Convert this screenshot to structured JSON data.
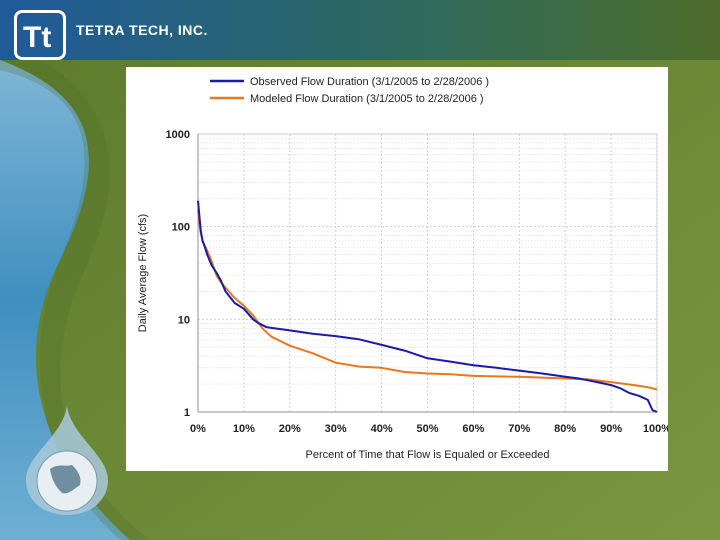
{
  "header": {
    "company_name": "TETRA TECH, INC."
  },
  "colors": {
    "observed": "#1a1aa8",
    "modeled": "#e6781e",
    "grid": "#c9c9c9"
  },
  "chart_data": {
    "type": "line",
    "title": "",
    "xlabel": "Percent of Time that Flow is Equaled or Exceeded",
    "ylabel": "Daily Average Flow (cfs)",
    "yscale": "log",
    "xlim": [
      0,
      100
    ],
    "ylim": [
      1,
      1000
    ],
    "x_ticks": [
      "0%",
      "10%",
      "20%",
      "30%",
      "40%",
      "50%",
      "60%",
      "70%",
      "80%",
      "90%",
      "100%"
    ],
    "y_ticks": [
      "1",
      "10",
      "100",
      "1000"
    ],
    "legend_position": "top",
    "series": [
      {
        "name": "Observed Flow Duration (3/1/2005 to 2/28/2006 )",
        "x": [
          0,
          0.3,
          0.6,
          1,
          1.5,
          2,
          3,
          4,
          5,
          6,
          8,
          10,
          12,
          13,
          15,
          20,
          25,
          30,
          35,
          40,
          45,
          50,
          55,
          60,
          65,
          70,
          75,
          80,
          83,
          85,
          88,
          90,
          92,
          94,
          96,
          98,
          99,
          100
        ],
        "y": [
          190,
          130,
          90,
          70,
          60,
          50,
          38,
          32,
          26,
          20,
          15,
          13,
          10,
          9.2,
          8.2,
          7.6,
          7.0,
          6.6,
          6.1,
          5.3,
          4.6,
          3.8,
          3.5,
          3.2,
          3.0,
          2.8,
          2.6,
          2.4,
          2.3,
          2.2,
          2.05,
          1.95,
          1.8,
          1.6,
          1.5,
          1.35,
          1.05,
          1.0
        ]
      },
      {
        "name": "Modeled Flow Duration (3/1/2005 to 2/28/2006 )",
        "x": [
          0,
          0.3,
          0.6,
          1,
          2,
          3,
          4,
          5,
          6,
          8,
          10,
          12,
          14,
          16,
          20,
          25,
          30,
          35,
          40,
          45,
          50,
          55,
          60,
          65,
          70,
          75,
          80,
          85,
          90,
          95,
          98,
          100
        ],
        "y": [
          150,
          110,
          85,
          70,
          55,
          42,
          30,
          25,
          22,
          17,
          14,
          11,
          8,
          6.5,
          5.2,
          4.3,
          3.4,
          3.1,
          3.0,
          2.7,
          2.6,
          2.55,
          2.45,
          2.42,
          2.4,
          2.35,
          2.3,
          2.25,
          2.1,
          1.95,
          1.85,
          1.75
        ]
      }
    ]
  }
}
